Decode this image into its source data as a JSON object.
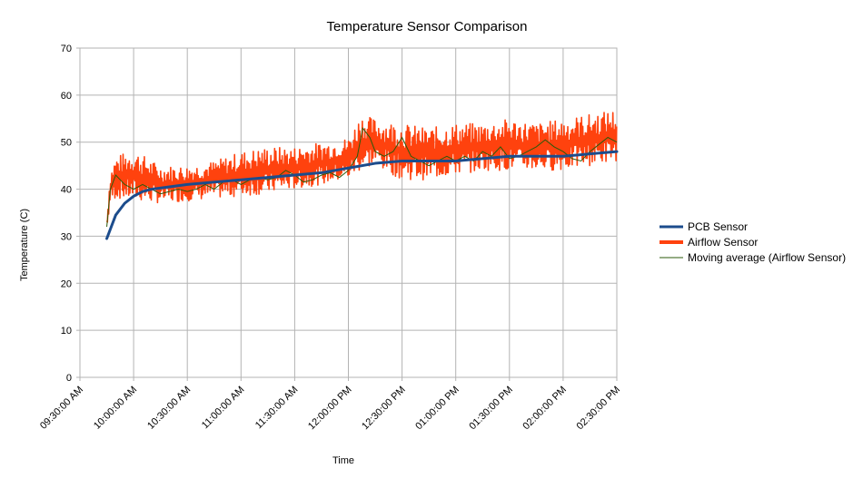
{
  "chart_data": {
    "type": "line",
    "title": "Temperature Sensor Comparison",
    "xlabel": "Time",
    "ylabel": "Temperature (C)",
    "ylim": [
      0,
      70
    ],
    "yticks": [
      0,
      10,
      20,
      30,
      40,
      50,
      60,
      70
    ],
    "xlim": [
      "09:30:00 AM",
      "02:30:00 PM"
    ],
    "xticks": [
      "09:30:00 AM",
      "10:00:00 AM",
      "10:30:00 AM",
      "11:00:00 AM",
      "11:30:00 AM",
      "12:00:00 PM",
      "12:30:00 PM",
      "01:00:00 PM",
      "01:30:00 PM",
      "02:00:00 PM",
      "02:30:00 PM"
    ],
    "grid": true,
    "legend_position": "right",
    "series": [
      {
        "name": "PCB Sensor",
        "color": "#1c4c8c",
        "x": [
          "09:45:00 AM",
          "09:47:00 AM",
          "09:50:00 AM",
          "09:55:00 AM",
          "10:00:00 AM",
          "10:05:00 AM",
          "10:10:00 AM",
          "10:20:00 AM",
          "10:30:00 AM",
          "10:45:00 AM",
          "11:00:00 AM",
          "11:15:00 AM",
          "11:30:00 AM",
          "11:45:00 AM",
          "12:00:00 PM",
          "12:15:00 PM",
          "12:30:00 PM",
          "12:45:00 PM",
          "01:00:00 PM",
          "01:15:00 PM",
          "01:30:00 PM",
          "01:45:00 PM",
          "02:00:00 PM",
          "02:15:00 PM",
          "02:30:00 PM"
        ],
        "values": [
          29.5,
          31.5,
          34.5,
          37.0,
          38.5,
          39.5,
          40.0,
          40.5,
          41.0,
          41.5,
          42.0,
          42.5,
          43.0,
          43.5,
          44.5,
          45.5,
          46.0,
          46.0,
          46.0,
          46.5,
          47.0,
          47.0,
          47.0,
          47.5,
          48.0
        ]
      },
      {
        "name": "Airflow Sensor",
        "color": "#ff420e",
        "x": [
          "09:45:00 AM",
          "09:47:00 AM",
          "09:50:00 AM",
          "10:00:00 AM",
          "10:15:00 AM",
          "10:30:00 AM",
          "10:45:00 AM",
          "11:00:00 AM",
          "11:15:00 AM",
          "11:30:00 AM",
          "11:45:00 AM",
          "12:00:00 PM",
          "12:07:00 PM",
          "12:15:00 PM",
          "12:30:00 PM",
          "12:45:00 PM",
          "01:00:00 PM",
          "01:15:00 PM",
          "01:30:00 PM",
          "01:45:00 PM",
          "02:00:00 PM",
          "02:15:00 PM",
          "02:30:00 PM"
        ],
        "min": [
          31,
          37,
          38,
          37.5,
          37,
          37.5,
          38,
          38.5,
          39,
          40,
          41,
          42,
          44,
          45,
          42,
          42,
          43,
          44,
          44,
          44,
          44,
          45,
          46
        ],
        "max": [
          34,
          44,
          47,
          48.5,
          45,
          45,
          46,
          48,
          49,
          49,
          50,
          51,
          56,
          55,
          54,
          53,
          54,
          54,
          55,
          54,
          55,
          56,
          57
        ]
      },
      {
        "name": "Moving average (Airflow Sensor)",
        "color": "#2b5a0a",
        "x": [
          "09:45:00 AM",
          "09:47:00 AM",
          "09:50:00 AM",
          "09:55:00 AM",
          "10:00:00 AM",
          "10:05:00 AM",
          "10:10:00 AM",
          "10:15:00 AM",
          "10:20:00 AM",
          "10:25:00 AM",
          "10:30:00 AM",
          "10:35:00 AM",
          "10:40:00 AM",
          "10:45:00 AM",
          "10:50:00 AM",
          "10:55:00 AM",
          "11:00:00 AM",
          "11:05:00 AM",
          "11:10:00 AM",
          "11:15:00 AM",
          "11:20:00 AM",
          "11:25:00 AM",
          "11:30:00 AM",
          "11:35:00 AM",
          "11:40:00 AM",
          "11:45:00 AM",
          "11:50:00 AM",
          "11:55:00 AM",
          "12:00:00 PM",
          "12:05:00 PM",
          "12:08:00 PM",
          "12:12:00 PM",
          "12:15:00 PM",
          "12:20:00 PM",
          "12:25:00 PM",
          "12:30:00 PM",
          "12:35:00 PM",
          "12:40:00 PM",
          "12:45:00 PM",
          "12:50:00 PM",
          "12:55:00 PM",
          "01:00:00 PM",
          "01:05:00 PM",
          "01:10:00 PM",
          "01:15:00 PM",
          "01:20:00 PM",
          "01:25:00 PM",
          "01:30:00 PM",
          "01:35:00 PM",
          "01:40:00 PM",
          "01:45:00 PM",
          "01:50:00 PM",
          "01:55:00 PM",
          "02:00:00 PM",
          "02:05:00 PM",
          "02:10:00 PM",
          "02:15:00 PM",
          "02:20:00 PM",
          "02:25:00 PM",
          "02:30:00 PM"
        ],
        "values": [
          32,
          40,
          43,
          41,
          40,
          41,
          40,
          39,
          39.5,
          40,
          39.5,
          40,
          41,
          40,
          41.5,
          42,
          41,
          42,
          42.5,
          42,
          42.5,
          44,
          43,
          41.5,
          42,
          43,
          43.5,
          42.5,
          44,
          47,
          53,
          51,
          48,
          47,
          48,
          51,
          47,
          46,
          45,
          46,
          47,
          46,
          47,
          46,
          48,
          47,
          49,
          46.5,
          47,
          48,
          49,
          50.5,
          49,
          48,
          46.5,
          46,
          48,
          49.5,
          51,
          50
        ]
      }
    ]
  }
}
